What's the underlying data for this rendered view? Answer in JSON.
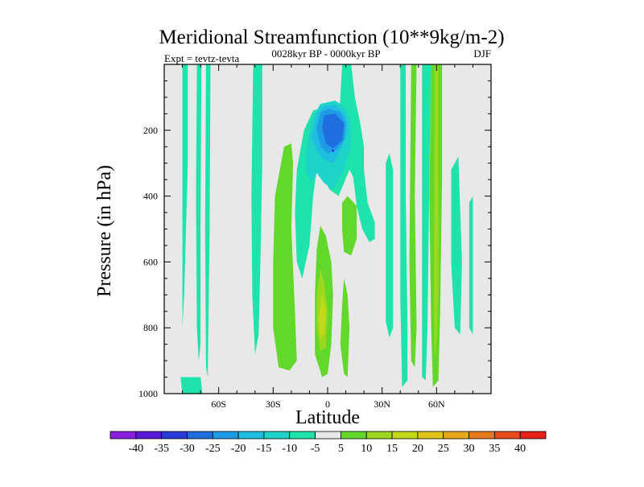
{
  "chart_data": {
    "type": "contour",
    "title": "Meridional Streamfunction (10**9kg/m-2)",
    "subtitle": "0028kyr BP - 0000kyr BP",
    "left_label": "Expt = tevtz-tevta",
    "right_label": "DJF",
    "xlabel": "Latitude",
    "ylabel": "Pressure (in hPa)",
    "xlim": [
      -90,
      90
    ],
    "ylim": [
      1000,
      0
    ],
    "x_ticks": [
      {
        "value": -60,
        "label": "60S"
      },
      {
        "value": -30,
        "label": "30S"
      },
      {
        "value": 0,
        "label": "0"
      },
      {
        "value": 30,
        "label": "30N"
      },
      {
        "value": 60,
        "label": "60N"
      }
    ],
    "y_ticks": [
      {
        "value": 200,
        "label": "200"
      },
      {
        "value": 400,
        "label": "400"
      },
      {
        "value": 600,
        "label": "600"
      },
      {
        "value": 800,
        "label": "800"
      },
      {
        "value": 1000,
        "label": "1000"
      }
    ],
    "levels": [
      -40,
      -35,
      -30,
      -25,
      -20,
      -15,
      -10,
      -5,
      5,
      10,
      15,
      20,
      25,
      30,
      35,
      40
    ],
    "level_labels": [
      "-40",
      "-35",
      "-30",
      "-25",
      "-20",
      "-15",
      "-10",
      "-5",
      "5",
      "10",
      "15",
      "20",
      "25",
      "30",
      "35",
      "40"
    ],
    "colors": [
      "#8a1fe0",
      "#5a18d8",
      "#2a3ad6",
      "#1f6ee0",
      "#1f9be6",
      "#1fbde0",
      "#1ed3c8",
      "#1ee3aa",
      "#e8e8e8",
      "#62d82a",
      "#9ed81e",
      "#c4d81a",
      "#e0c41a",
      "#e8a81a",
      "#e8781a",
      "#e84a1a",
      "#e8201a"
    ],
    "background_color": "#e8e8e8",
    "regions": [
      {
        "name": "sh-polar-stripe-1",
        "color": "#1ee3aa",
        "points": [
          [
            -80,
            0
          ],
          [
            -77,
            0
          ],
          [
            -77,
            300
          ],
          [
            -79,
            700
          ],
          [
            -80,
            800
          ],
          [
            -80,
            0
          ]
        ]
      },
      {
        "name": "sh-polar-stripe-2",
        "color": "#1ee3aa",
        "points": [
          [
            -72,
            0
          ],
          [
            -69.5,
            0
          ],
          [
            -70,
            500
          ],
          [
            -70,
            850
          ],
          [
            -71,
            900
          ],
          [
            -72,
            800
          ],
          [
            -72.5,
            400
          ],
          [
            -72,
            0
          ]
        ]
      },
      {
        "name": "sh-polar-stripe-3",
        "color": "#1ee3aa",
        "points": [
          [
            -67,
            0
          ],
          [
            -64.5,
            0
          ],
          [
            -65,
            500
          ],
          [
            -66,
            950
          ],
          [
            -67,
            920
          ],
          [
            -67.5,
            500
          ],
          [
            -67,
            0
          ]
        ]
      },
      {
        "name": "sh-polar-stripe-4",
        "color": "#1ee3aa",
        "points": [
          [
            -81,
            950
          ],
          [
            -70,
            950
          ],
          [
            -69,
            1000
          ],
          [
            -80,
            1000
          ],
          [
            -81,
            950
          ]
        ]
      },
      {
        "name": "sh-mid-green-cell",
        "color": "#62d82a",
        "points": [
          [
            -29,
            400
          ],
          [
            -24,
            250
          ],
          [
            -20,
            240
          ],
          [
            -19,
            300
          ],
          [
            -20,
            500
          ],
          [
            -18,
            750
          ],
          [
            -17,
            900
          ],
          [
            -21,
            930
          ],
          [
            -27,
            920
          ],
          [
            -30,
            800
          ],
          [
            -30,
            600
          ],
          [
            -29,
            400
          ]
        ]
      },
      {
        "name": "sh-mid-cyan-column",
        "color": "#1ee3aa",
        "points": [
          [
            -41,
            0
          ],
          [
            -36,
            0
          ],
          [
            -36,
            300
          ],
          [
            -37,
            600
          ],
          [
            -38,
            820
          ],
          [
            -40,
            880
          ],
          [
            -41.5,
            700
          ],
          [
            -42,
            400
          ],
          [
            -41,
            0
          ]
        ]
      },
      {
        "name": "sh-subtropical-cyan",
        "color": "#1ee3aa",
        "points": [
          [
            -17,
            320
          ],
          [
            -13,
            200
          ],
          [
            -8,
            140
          ],
          [
            -2,
            130
          ],
          [
            8,
            130
          ],
          [
            13,
            150
          ],
          [
            16,
            180
          ],
          [
            15,
            250
          ],
          [
            12,
            320
          ],
          [
            6,
            400
          ],
          [
            1,
            380
          ],
          [
            -3,
            340
          ],
          [
            -6,
            320
          ],
          [
            -8,
            400
          ],
          [
            -10,
            550
          ],
          [
            -14,
            650
          ],
          [
            -17,
            600
          ],
          [
            -18,
            450
          ],
          [
            -17,
            320
          ]
        ]
      },
      {
        "name": "tropical-upper-cyan",
        "color": "#1ee3aa",
        "points": [
          [
            8,
            0
          ],
          [
            13,
            0
          ],
          [
            15,
            100
          ],
          [
            18,
            180
          ],
          [
            20,
            250
          ],
          [
            20,
            320
          ],
          [
            22,
            420
          ],
          [
            26,
            480
          ],
          [
            26,
            530
          ],
          [
            23,
            540
          ],
          [
            19,
            500
          ],
          [
            16,
            430
          ],
          [
            14,
            340
          ],
          [
            10,
            300
          ],
          [
            6,
            200
          ],
          [
            7,
            100
          ],
          [
            8,
            0
          ]
        ]
      },
      {
        "name": "tropical-streamfunction-teal",
        "color": "#1ed3c8",
        "points": [
          [
            -12,
            270
          ],
          [
            -9,
            170
          ],
          [
            -4,
            120
          ],
          [
            4,
            110
          ],
          [
            10,
            130
          ],
          [
            13,
            180
          ],
          [
            13,
            250
          ],
          [
            9,
            320
          ],
          [
            3,
            380
          ],
          [
            -2,
            360
          ],
          [
            -6,
            330
          ],
          [
            -9,
            360
          ],
          [
            -12,
            330
          ],
          [
            -12,
            270
          ]
        ]
      },
      {
        "name": "tropical-streamfunction-light-blue",
        "color": "#1fbde0",
        "points": [
          [
            -9,
            220
          ],
          [
            -6,
            150
          ],
          [
            -2,
            125
          ],
          [
            5,
            125
          ],
          [
            10,
            155
          ],
          [
            11,
            200
          ],
          [
            8,
            250
          ],
          [
            3,
            300
          ],
          [
            -2,
            290
          ],
          [
            -6,
            260
          ],
          [
            -9,
            220
          ]
        ]
      },
      {
        "name": "tropical-streamfunction-mid-blue",
        "color": "#1f9be6",
        "points": [
          [
            -6,
            200
          ],
          [
            -4,
            145
          ],
          [
            1,
            135
          ],
          [
            7,
            145
          ],
          [
            10,
            180
          ],
          [
            9,
            230
          ],
          [
            5,
            260
          ],
          [
            0,
            270
          ],
          [
            -4,
            250
          ],
          [
            -6,
            200
          ]
        ]
      },
      {
        "name": "tropical-streamfunction-blue",
        "color": "#1f6ee0",
        "points": [
          [
            -3,
            190
          ],
          [
            -2,
            155
          ],
          [
            4,
            150
          ],
          [
            9,
            180
          ],
          [
            8,
            230
          ],
          [
            3,
            255
          ],
          [
            -1,
            240
          ],
          [
            -3,
            190
          ]
        ]
      },
      {
        "name": "tropical-lower-green-left",
        "color": "#62d82a",
        "points": [
          [
            -4,
            490
          ],
          [
            -1,
            520
          ],
          [
            2,
            600
          ],
          [
            3,
            700
          ],
          [
            2,
            850
          ],
          [
            0,
            940
          ],
          [
            -3,
            950
          ],
          [
            -7,
            880
          ],
          [
            -7,
            700
          ],
          [
            -6,
            560
          ],
          [
            -4,
            490
          ]
        ]
      },
      {
        "name": "tropical-lower-yellow-left",
        "color": "#9ed81e",
        "points": [
          [
            -4,
            620
          ],
          [
            -2,
            660
          ],
          [
            0,
            750
          ],
          [
            -1,
            860
          ],
          [
            -4,
            870
          ],
          [
            -6,
            800
          ],
          [
            -6,
            700
          ],
          [
            -4,
            620
          ]
        ]
      },
      {
        "name": "tropical-lower-gold",
        "color": "#c4d81a",
        "points": [
          [
            -3,
            700
          ],
          [
            -1,
            750
          ],
          [
            -2,
            820
          ],
          [
            -4,
            830
          ],
          [
            -5,
            770
          ],
          [
            -3,
            700
          ]
        ]
      },
      {
        "name": "tropical-lower-green-right",
        "color": "#62d82a",
        "points": [
          [
            9,
            650
          ],
          [
            11,
            700
          ],
          [
            12,
            800
          ],
          [
            11,
            950
          ],
          [
            9,
            940
          ],
          [
            7,
            850
          ],
          [
            8,
            730
          ],
          [
            9,
            650
          ]
        ]
      },
      {
        "name": "nh-subtropical-green-island",
        "color": "#62d82a",
        "points": [
          [
            8,
            420
          ],
          [
            11,
            400
          ],
          [
            16,
            430
          ],
          [
            16,
            530
          ],
          [
            13,
            580
          ],
          [
            9,
            570
          ],
          [
            8,
            500
          ],
          [
            8,
            420
          ]
        ]
      },
      {
        "name": "nh-mid-cyan-1",
        "color": "#1ee3aa",
        "points": [
          [
            32,
            300
          ],
          [
            34,
            270
          ],
          [
            36,
            320
          ],
          [
            36,
            800
          ],
          [
            34,
            830
          ],
          [
            32,
            780
          ],
          [
            32,
            300
          ]
        ]
      },
      {
        "name": "nh-mid-cyan-2",
        "color": "#1ee3aa",
        "points": [
          [
            40,
            0
          ],
          [
            43,
            0
          ],
          [
            43,
            400
          ],
          [
            44,
            800
          ],
          [
            44,
            960
          ],
          [
            41,
            980
          ],
          [
            40,
            700
          ],
          [
            40,
            0
          ]
        ]
      },
      {
        "name": "nh-mid-green-stripe",
        "color": "#62d82a",
        "points": [
          [
            46,
            0
          ],
          [
            49,
            0
          ],
          [
            48,
            400
          ],
          [
            49,
            800
          ],
          [
            48,
            920
          ],
          [
            46,
            900
          ],
          [
            45,
            600
          ],
          [
            46,
            0
          ]
        ]
      },
      {
        "name": "nh-polar-cyan",
        "color": "#1ee3aa",
        "points": [
          [
            52,
            0
          ],
          [
            57,
            0
          ],
          [
            56,
            350
          ],
          [
            55,
            800
          ],
          [
            54,
            960
          ],
          [
            52,
            950
          ],
          [
            52,
            600
          ],
          [
            52,
            0
          ]
        ]
      },
      {
        "name": "nh-polar-green",
        "color": "#62d82a",
        "points": [
          [
            57,
            0
          ],
          [
            63,
            0
          ],
          [
            63,
            350
          ],
          [
            62,
            750
          ],
          [
            61,
            960
          ],
          [
            58,
            980
          ],
          [
            57,
            800
          ],
          [
            56,
            400
          ],
          [
            57,
            0
          ]
        ]
      },
      {
        "name": "nh-polar-yellow",
        "color": "#9ed81e",
        "points": [
          [
            59,
            0
          ],
          [
            61,
            0
          ],
          [
            61,
            400
          ],
          [
            61,
            700
          ],
          [
            60,
            840
          ],
          [
            59,
            900
          ],
          [
            58.5,
            700
          ],
          [
            59,
            0
          ]
        ]
      },
      {
        "name": "nh-polar-cyan-2",
        "color": "#1ee3aa",
        "points": [
          [
            68,
            320
          ],
          [
            72,
            280
          ],
          [
            74,
            600
          ],
          [
            73,
            820
          ],
          [
            70,
            800
          ],
          [
            68,
            600
          ],
          [
            68,
            320
          ]
        ]
      },
      {
        "name": "nh-polar-cyan-3",
        "color": "#1ee3aa",
        "points": [
          [
            78,
            420
          ],
          [
            80,
            400
          ],
          [
            80,
            820
          ],
          [
            78,
            800
          ],
          [
            78,
            420
          ]
        ]
      }
    ]
  }
}
